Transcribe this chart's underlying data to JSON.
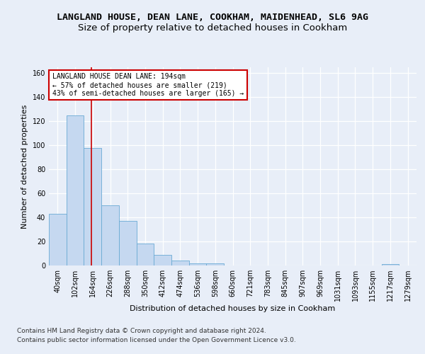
{
  "title_line1": "LANGLAND HOUSE, DEAN LANE, COOKHAM, MAIDENHEAD, SL6 9AG",
  "title_line2": "Size of property relative to detached houses in Cookham",
  "xlabel": "Distribution of detached houses by size in Cookham",
  "ylabel": "Number of detached properties",
  "bin_labels": [
    "40sqm",
    "102sqm",
    "164sqm",
    "226sqm",
    "288sqm",
    "350sqm",
    "412sqm",
    "474sqm",
    "536sqm",
    "598sqm",
    "660sqm",
    "721sqm",
    "783sqm",
    "845sqm",
    "907sqm",
    "969sqm",
    "1031sqm",
    "1093sqm",
    "1155sqm",
    "1217sqm",
    "1279sqm"
  ],
  "bar_values": [
    43,
    125,
    98,
    50,
    37,
    18,
    9,
    4,
    2,
    2,
    0,
    0,
    0,
    0,
    0,
    0,
    0,
    0,
    0,
    1,
    0
  ],
  "bar_color": "#c5d8f0",
  "bar_edge_color": "#6aaad4",
  "red_line_x": 2.42,
  "annotation_text": "LANGLAND HOUSE DEAN LANE: 194sqm\n← 57% of detached houses are smaller (219)\n43% of semi-detached houses are larger (165) →",
  "annotation_box_color": "#ffffff",
  "annotation_box_edge": "#cc0000",
  "red_line_color": "#cc0000",
  "ylim": [
    0,
    165
  ],
  "yticks": [
    0,
    20,
    40,
    60,
    80,
    100,
    120,
    140,
    160
  ],
  "footer_line1": "Contains HM Land Registry data © Crown copyright and database right 2024.",
  "footer_line2": "Contains public sector information licensed under the Open Government Licence v3.0.",
  "bg_color": "#e8eef8",
  "plot_bg_color": "#e8eef8",
  "grid_color": "#ffffff",
  "title_fontsize": 9.5,
  "subtitle_fontsize": 9.5,
  "axis_label_fontsize": 8,
  "tick_fontsize": 7,
  "annotation_fontsize": 7,
  "footer_fontsize": 6.5
}
